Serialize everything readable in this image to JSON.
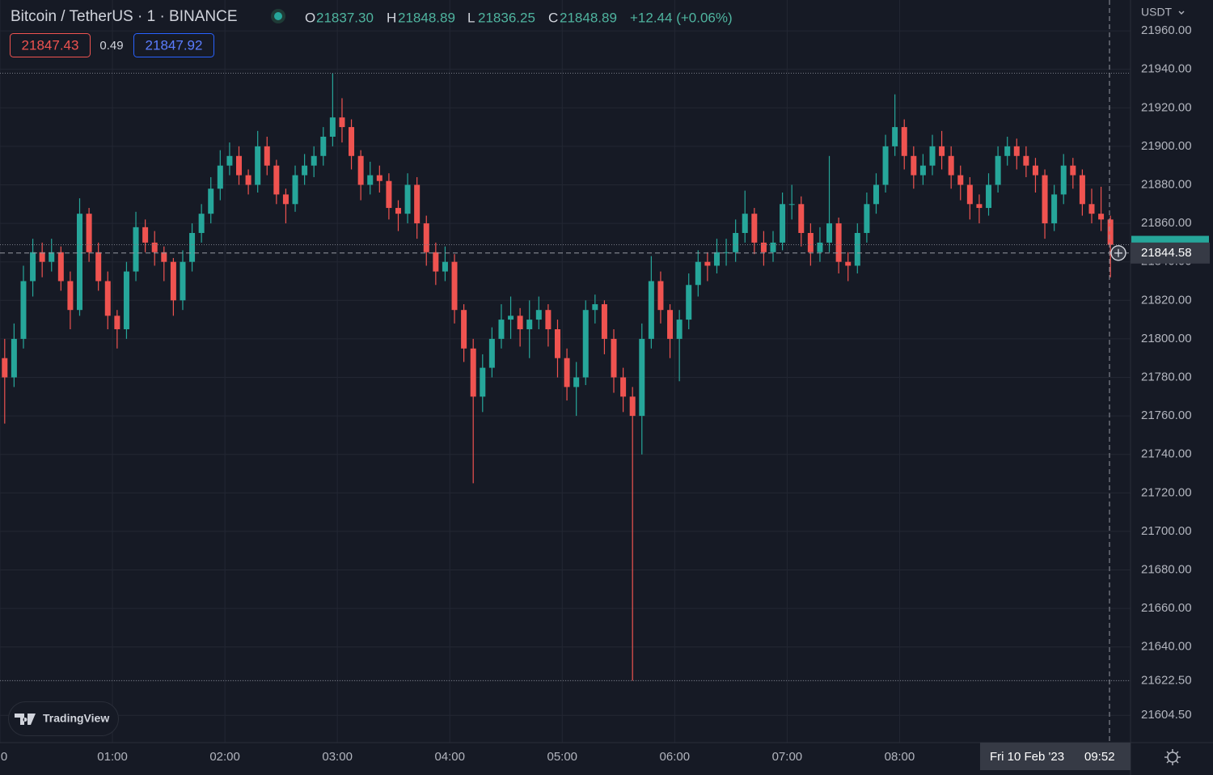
{
  "header": {
    "symbol": "Bitcoin / TetherUS · 1 · BINANCE",
    "ohlc": [
      {
        "label": "O",
        "value": "21837.30"
      },
      {
        "label": "H",
        "value": "21848.89"
      },
      {
        "label": "L",
        "value": "21836.25"
      },
      {
        "label": "C",
        "value": "21848.89"
      }
    ],
    "change": "+12.44 (+0.06%)"
  },
  "quote": {
    "bid": "21847.43",
    "spread": "0.49",
    "ask": "21847.92"
  },
  "currency": "USDT",
  "watermark": "TradingView",
  "crosshair": {
    "price": 21844.58,
    "date": "Fri 10 Feb '23",
    "time": "09:52"
  },
  "chart_data": {
    "type": "candlestick",
    "x": [
      "00:00",
      "00:05",
      "00:10",
      "00:15",
      "00:20",
      "00:25",
      "00:30",
      "00:35",
      "00:40",
      "00:45",
      "00:50",
      "00:55",
      "01:00",
      "01:05",
      "01:10",
      "01:15",
      "01:20",
      "01:25",
      "01:30",
      "01:35",
      "01:40",
      "01:45",
      "01:50",
      "01:55",
      "02:00",
      "02:05",
      "02:10",
      "02:15",
      "02:20",
      "02:25",
      "02:30",
      "02:35",
      "02:40",
      "02:45",
      "02:50",
      "02:55",
      "03:00",
      "03:05",
      "03:10",
      "03:15",
      "03:20",
      "03:25",
      "03:30",
      "03:35",
      "03:40",
      "03:45",
      "03:50",
      "03:55",
      "04:00",
      "04:05",
      "04:10",
      "04:15",
      "04:20",
      "04:25",
      "04:30",
      "04:35",
      "04:40",
      "04:45",
      "04:50",
      "04:55",
      "05:00",
      "05:05",
      "05:10",
      "05:15",
      "05:20",
      "05:25",
      "05:30",
      "05:35",
      "05:40",
      "05:45",
      "05:50",
      "05:55",
      "06:00",
      "06:05",
      "06:10",
      "06:15",
      "06:20",
      "06:25",
      "06:30",
      "06:35",
      "06:40",
      "06:45",
      "06:50",
      "06:55",
      "07:00",
      "07:05",
      "07:10",
      "07:15",
      "07:20",
      "07:25",
      "07:30",
      "07:35",
      "07:40",
      "07:45",
      "07:50",
      "07:55",
      "08:00",
      "08:05",
      "08:10",
      "08:15",
      "08:20",
      "08:25",
      "08:30",
      "08:35",
      "08:40",
      "08:45",
      "08:50",
      "08:55",
      "09:00",
      "09:05",
      "09:10",
      "09:15",
      "09:20",
      "09:25",
      "09:30",
      "09:35",
      "09:40",
      "09:45",
      "09:50"
    ],
    "open": [
      21790,
      21780,
      21800,
      21830,
      21845,
      21840,
      21845,
      21830,
      21815,
      21865,
      21845,
      21830,
      21812,
      21805,
      21835,
      21858,
      21850,
      21845,
      21840,
      21820,
      21840,
      21855,
      21865,
      21878,
      21890,
      21895,
      21885,
      21880,
      21900,
      21890,
      21875,
      21870,
      21885,
      21890,
      21895,
      21905,
      21915,
      21910,
      21895,
      21880,
      21885,
      21882,
      21868,
      21865,
      21880,
      21860,
      21845,
      21835,
      21840,
      21815,
      21795,
      21770,
      21785,
      21800,
      21810,
      21812,
      21805,
      21810,
      21815,
      21805,
      21790,
      21775,
      21780,
      21815,
      21818,
      21800,
      21780,
      21770,
      21760,
      21800,
      21830,
      21815,
      21800,
      21810,
      21828,
      21840,
      21838,
      21845,
      21845,
      21855,
      21865,
      21850,
      21845,
      21850,
      21870,
      21870,
      21855,
      21845,
      21850,
      21860,
      21840,
      21838,
      21855,
      21870,
      21880,
      21900,
      21910,
      21895,
      21885,
      21890,
      21900,
      21895,
      21885,
      21880,
      21870,
      21868,
      21880,
      21895,
      21900,
      21895,
      21890,
      21885,
      21860,
      21875,
      21890,
      21885,
      21870,
      21865,
      21862
    ],
    "high": [
      21800,
      21808,
      21838,
      21852,
      21850,
      21852,
      21848,
      21835,
      21873,
      21868,
      21850,
      21835,
      21815,
      21840,
      21866,
      21862,
      21856,
      21848,
      21842,
      21846,
      21860,
      21870,
      21884,
      21898,
      21902,
      21900,
      21888,
      21908,
      21905,
      21893,
      21878,
      21890,
      21896,
      21900,
      21910,
      21938,
      21925,
      21914,
      21898,
      21892,
      21890,
      21886,
      21872,
      21886,
      21884,
      21864,
      21850,
      21848,
      21844,
      21818,
      21800,
      21792,
      21806,
      21818,
      21822,
      21816,
      21820,
      21822,
      21818,
      21810,
      21795,
      21788,
      21820,
      21823,
      21820,
      21805,
      21785,
      21775,
      21808,
      21843,
      21835,
      21818,
      21815,
      21834,
      21846,
      21845,
      21852,
      21852,
      21862,
      21877,
      21868,
      21856,
      21856,
      21876,
      21880,
      21874,
      21860,
      21858,
      21895,
      21863,
      21845,
      21860,
      21876,
      21886,
      21906,
      21927,
      21914,
      21900,
      21896,
      21906,
      21908,
      21900,
      21890,
      21884,
      21875,
      21886,
      21900,
      21905,
      21904,
      21900,
      21894,
      21888,
      21880,
      21896,
      21894,
      21888,
      21878,
      21879,
      21864
    ],
    "low": [
      21756,
      21775,
      21795,
      21822,
      21832,
      21835,
      21825,
      21805,
      21812,
      21840,
      21825,
      21805,
      21795,
      21800,
      21830,
      21845,
      21838,
      21830,
      21812,
      21815,
      21835,
      21850,
      21860,
      21872,
      21885,
      21880,
      21875,
      21876,
      21885,
      21870,
      21860,
      21866,
      21880,
      21884,
      21890,
      21900,
      21902,
      21888,
      21872,
      21875,
      21876,
      21862,
      21856,
      21860,
      21852,
      21838,
      21828,
      21830,
      21808,
      21788,
      21725,
      21762,
      21780,
      21795,
      21800,
      21796,
      21790,
      21805,
      21796,
      21780,
      21768,
      21760,
      21776,
      21808,
      21792,
      21772,
      21762,
      21622.5,
      21740,
      21795,
      21808,
      21790,
      21778,
      21805,
      21822,
      21830,
      21834,
      21838,
      21840,
      21850,
      21844,
      21838,
      21840,
      21846,
      21862,
      21848,
      21838,
      21840,
      21845,
      21834,
      21830,
      21834,
      21850,
      21865,
      21876,
      21895,
      21888,
      21878,
      21880,
      21885,
      21888,
      21878,
      21872,
      21862,
      21860,
      21864,
      21876,
      21890,
      21888,
      21884,
      21876,
      21852,
      21856,
      21870,
      21878,
      21864,
      21860,
      21856,
      21832
    ],
    "close": [
      21780,
      21800,
      21830,
      21845,
      21840,
      21845,
      21830,
      21815,
      21865,
      21845,
      21830,
      21812,
      21805,
      21835,
      21858,
      21850,
      21845,
      21840,
      21820,
      21840,
      21855,
      21865,
      21878,
      21890,
      21895,
      21885,
      21880,
      21900,
      21890,
      21875,
      21870,
      21885,
      21890,
      21895,
      21905,
      21915,
      21910,
      21895,
      21880,
      21885,
      21882,
      21868,
      21865,
      21880,
      21860,
      21845,
      21835,
      21840,
      21815,
      21795,
      21770,
      21785,
      21800,
      21810,
      21812,
      21805,
      21810,
      21815,
      21805,
      21790,
      21775,
      21780,
      21815,
      21818,
      21800,
      21780,
      21770,
      21760,
      21800,
      21830,
      21815,
      21800,
      21810,
      21828,
      21840,
      21838,
      21845,
      21845,
      21855,
      21865,
      21850,
      21845,
      21850,
      21870,
      21870,
      21855,
      21845,
      21850,
      21860,
      21840,
      21838,
      21855,
      21870,
      21880,
      21900,
      21910,
      21895,
      21885,
      21890,
      21900,
      21895,
      21885,
      21880,
      21870,
      21868,
      21880,
      21895,
      21900,
      21895,
      21890,
      21885,
      21860,
      21875,
      21890,
      21885,
      21870,
      21865,
      21862,
      21848.89
    ],
    "up_color": "#26a69a",
    "down_color": "#ef5350",
    "xlim": [
      "00:00",
      "09:52"
    ],
    "xticks": [
      {
        "value": "00:00",
        "label": "0"
      },
      "01:00",
      "02:00",
      "03:00",
      "04:00",
      "05:00",
      "06:00",
      "07:00",
      "08:00"
    ],
    "ylim": [
      21590.3,
      21976.0
    ],
    "yticks": [
      {
        "value": 21960,
        "label": "21960.00"
      },
      {
        "value": 21940,
        "label": "21940.00"
      },
      {
        "value": 21920,
        "label": "21920.00"
      },
      {
        "value": 21900,
        "label": "21900.00"
      },
      {
        "value": 21880,
        "label": "21880.00"
      },
      {
        "value": 21860,
        "label": "21860.00"
      },
      {
        "value": 21840,
        "label": "21840.00"
      },
      {
        "value": 21820,
        "label": "21820.00"
      },
      {
        "value": 21800,
        "label": "21800.00"
      },
      {
        "value": 21780,
        "label": "21780.00"
      },
      {
        "value": 21760,
        "label": "21760.00"
      },
      {
        "value": 21740,
        "label": "21740.00"
      },
      {
        "value": 21720,
        "label": "21720.00"
      },
      {
        "value": 21700,
        "label": "21700.00"
      },
      {
        "value": 21680,
        "label": "21680.00"
      },
      {
        "value": 21660,
        "label": "21660.00"
      },
      {
        "value": 21640,
        "label": "21640.00"
      },
      {
        "value": 21622.5,
        "label": "21622.50"
      },
      {
        "value": 21604.5,
        "label": "21604.50"
      }
    ],
    "grid": true
  }
}
